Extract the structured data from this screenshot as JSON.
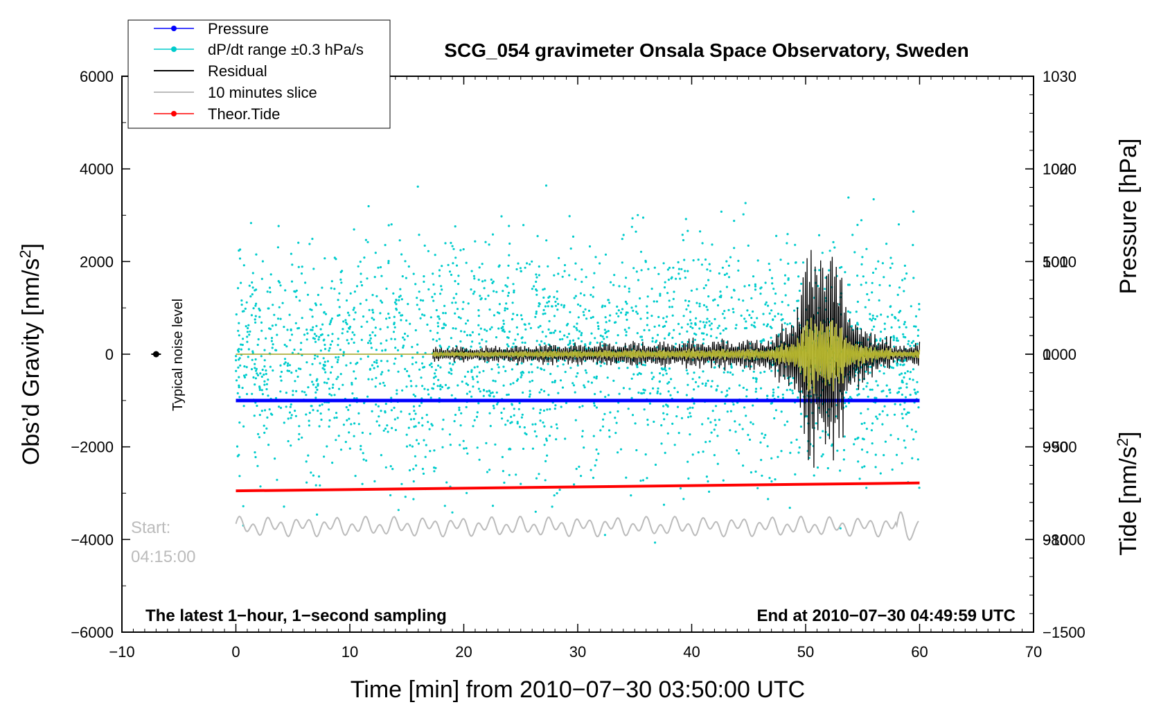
{
  "chart_data": {
    "type": "line",
    "title": "SCG_054 gravimeter Onsala Space Observatory, Sweden",
    "xlabel": "Time [min] from 2010−07−30 03:50:00 UTC",
    "ylabel_left_main": "Obs’d Gravity [nm/s",
    "ylabel_left_sup": "2",
    "ylabel_left_tail": "]",
    "ylabel_right_top": "Pressure [hPa]",
    "ylabel_right_bottom_main": "Tide [nm/s",
    "ylabel_right_bottom_sup": "2",
    "ylabel_right_bottom_tail": "]",
    "xlim": [
      -10,
      70
    ],
    "ylim_gravity": [
      -6000,
      6000
    ],
    "ylim_pressure": [
      970,
      1030
    ],
    "ylim_tide": [
      -1500,
      1500
    ],
    "x_ticks": [
      -10,
      0,
      10,
      20,
      30,
      40,
      50,
      60,
      70
    ],
    "x_tick_labels": [
      "−10",
      "0",
      "10",
      "20",
      "30",
      "40",
      "50",
      "60",
      "70"
    ],
    "y_ticks_gravity": [
      -6000,
      -4000,
      -2000,
      0,
      2000,
      4000,
      6000
    ],
    "y_tick_labels_gravity": [
      "−6000",
      "−4000",
      "−2000",
      "0",
      "2000",
      "4000",
      "6000"
    ],
    "y_ticks_pressure": [
      980,
      990,
      1000,
      1010,
      1020,
      1030
    ],
    "y_tick_labels_pressure": [
      "980",
      "990",
      "1000",
      "1010",
      "1020",
      "1030"
    ],
    "y_ticks_tide": [
      -1500,
      -1000,
      -500,
      0,
      500,
      1000
    ],
    "y_tick_labels_tide": [
      "−1500",
      "−1000",
      "−500",
      "0",
      "500",
      "1000"
    ],
    "legend": [
      {
        "label": "Pressure",
        "color": "#0000ff",
        "marker": true
      },
      {
        "label": "dP/dt range ±0.3 hPa/s",
        "color": "#00cccc",
        "marker": true
      },
      {
        "label": "Residual",
        "color": "#000000",
        "marker": false
      },
      {
        "label": "10 minutes slice",
        "color": "#bbbbbb",
        "marker": false
      },
      {
        "label": "Theor.Tide",
        "color": "#ff0000",
        "marker": true
      }
    ],
    "series": [
      {
        "name": "Pressure",
        "axis": "pressure",
        "x": [
          0,
          60
        ],
        "values": [
          995,
          995
        ]
      },
      {
        "name": "Residual",
        "axis": "gravity",
        "onset_min": 17.3,
        "peak_min": 51.5,
        "peak_amplitude": 2800,
        "min_value": -2450,
        "end_min": 60
      },
      {
        "name": "Theor.Tide",
        "axis": "gravity",
        "x": [
          0,
          60
        ],
        "values": [
          -2950,
          -2780
        ]
      },
      {
        "name": "10 minutes slice",
        "axis": "gravity",
        "x": [
          0,
          60
        ],
        "baseline": -3720
      }
    ],
    "noise_marker": {
      "x": -7,
      "y": 0,
      "label": "Typical noise level"
    },
    "start_label_line1": "Start:",
    "start_label_line2": "04:15:00",
    "note_left": "The latest 1−hour, 1−second sampling",
    "note_right": "End at 2010−07−30 04:49:59 UTC"
  }
}
